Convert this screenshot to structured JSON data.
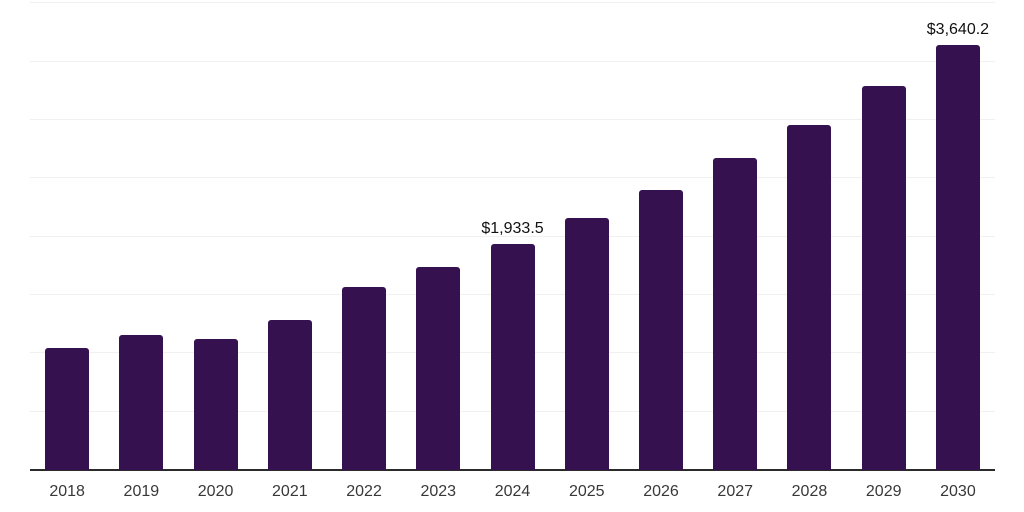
{
  "chart_data": {
    "type": "bar",
    "title": "",
    "xlabel": "",
    "ylabel": "",
    "categories": [
      "2018",
      "2019",
      "2020",
      "2021",
      "2022",
      "2023",
      "2024",
      "2025",
      "2026",
      "2027",
      "2028",
      "2029",
      "2030"
    ],
    "values": [
      1045,
      1157,
      1123,
      1285,
      1568,
      1740,
      1933.5,
      2160,
      2400,
      2670,
      2955,
      3290,
      3640.2
    ],
    "point_labels": [
      "",
      "",
      "",
      "",
      "",
      "",
      "$1,933.5",
      "",
      "",
      "",
      "",
      "",
      "$3,640.2"
    ],
    "ylim": [
      0,
      4000
    ],
    "grid_step": 500,
    "grid": true,
    "legend": false,
    "y_axis_tick_labels_visible": false,
    "colors": {
      "bar": "#361150",
      "gridline": "#f0f0f0",
      "axis_line": "#2b2b2b",
      "tick_label": "#383838",
      "value_label": "#111111",
      "background": "#ffffff"
    }
  }
}
